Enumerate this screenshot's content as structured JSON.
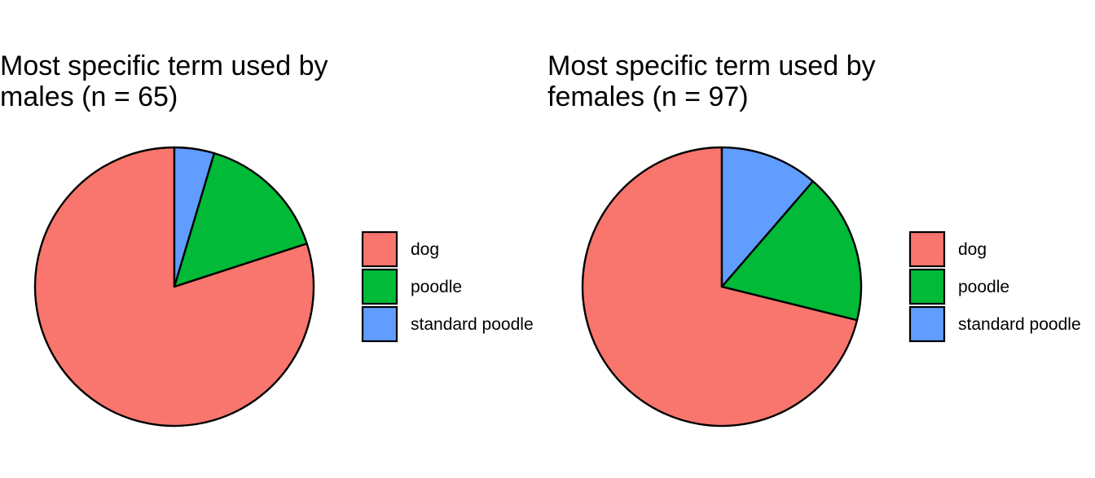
{
  "chart_data": [
    {
      "type": "pie",
      "title_lines": [
        "Most specific term used by",
        "males (n = 65)"
      ],
      "categories": [
        "dog",
        "poodle",
        "standard poodle"
      ],
      "values": [
        52,
        10,
        3
      ],
      "colors": [
        "#F8766D",
        "#00BA38",
        "#619CFF"
      ],
      "legend_position": "right",
      "start": "top",
      "direction": "counterclockwise"
    },
    {
      "type": "pie",
      "title_lines": [
        "Most specific term used by",
        "females (n = 97)"
      ],
      "categories": [
        "dog",
        "poodle",
        "standard poodle"
      ],
      "values": [
        69,
        17,
        11
      ],
      "colors": [
        "#F8766D",
        "#00BA38",
        "#619CFF"
      ],
      "legend_position": "right",
      "start": "top",
      "direction": "counterclockwise"
    }
  ]
}
